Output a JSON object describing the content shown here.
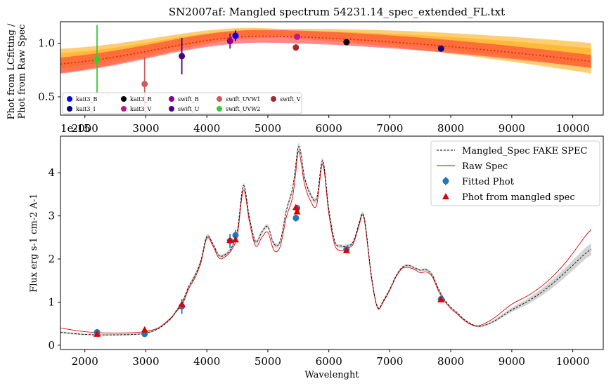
{
  "chart_data": [
    {
      "type": "scatter",
      "title": "SN2007af: Mangled spectrum 54231.14_spec_extended_FL.txt",
      "ylabel_line1": "Phot from LCfitting /",
      "ylabel_line2": "Phot from Raw Spec",
      "xlabel": "",
      "xlim": [
        1600,
        10500
      ],
      "ylim": [
        0.33,
        1.2
      ],
      "xticks": [
        2000,
        3000,
        4000,
        5000,
        6000,
        7000,
        8000,
        9000,
        10000
      ],
      "yticks": [
        0.5,
        1.0
      ],
      "ytick_labels": [
        "0.5",
        "1.0"
      ],
      "offset_text": "1e-15",
      "grid": false,
      "legend_placement": "lower-left",
      "series": [
        {
          "name": "kait3_B",
          "color": "#0000ff",
          "x": [
            4470
          ],
          "y": [
            1.07
          ],
          "err": [
            0.05
          ]
        },
        {
          "name": "kait3_I",
          "color": "#00008b",
          "x": [
            7840
          ],
          "y": [
            0.95
          ],
          "err": [
            0.02
          ]
        },
        {
          "name": "kait3_R",
          "color": "#000000",
          "x": [
            6290
          ],
          "y": [
            1.01
          ],
          "err": [
            0.02
          ]
        },
        {
          "name": "kait3_V",
          "color": "#c71585",
          "x": [
            5480
          ],
          "y": [
            1.06
          ],
          "err": [
            0.02
          ]
        },
        {
          "name": "swift_B",
          "color": "#8b008b",
          "x": [
            4380
          ],
          "y": [
            1.02
          ],
          "err": [
            0.07
          ]
        },
        {
          "name": "swift_U",
          "color": "#4b0082",
          "x": [
            3590
          ],
          "y": [
            0.88
          ],
          "err": [
            0.17
          ]
        },
        {
          "name": "swift_UVW1",
          "color": "#cd5c5c",
          "x": [
            2980
          ],
          "y": [
            0.62
          ],
          "err": [
            0.25
          ]
        },
        {
          "name": "swift_UVW2",
          "color": "#32cd32",
          "x": [
            2200
          ],
          "y": [
            0.85
          ],
          "err": [
            0.32
          ]
        },
        {
          "name": "swift_V",
          "color": "#a52a2a",
          "x": [
            5460
          ],
          "y": [
            0.96
          ],
          "err": [
            0.03
          ]
        }
      ],
      "curve_color": "#ff6060",
      "band_color": "#ffa500"
    },
    {
      "type": "line",
      "xlabel": "Wavelenght",
      "ylabel": "Flux erg s-1 cm-2 A-1",
      "xlim": [
        1600,
        10500
      ],
      "ylim": [
        -0.1,
        4.85
      ],
      "xticks": [
        2000,
        3000,
        4000,
        5000,
        6000,
        7000,
        8000,
        9000,
        10000
      ],
      "yticks": [
        0,
        1,
        2,
        3,
        4
      ],
      "grid": false,
      "legend_placement": "top-right",
      "legend": [
        {
          "name": "Mangled_Spec FAKE SPEC",
          "kind": "dashed",
          "color": "#000000"
        },
        {
          "name": "Raw Spec",
          "kind": "line",
          "color": "#e00000"
        },
        {
          "name": "Fitted Phot",
          "kind": "errpoint",
          "color": "#1f77b4"
        },
        {
          "name": "Phot from mangled spec",
          "kind": "triangle",
          "color": "#e00000"
        }
      ],
      "mangled_spec": {
        "x": [
          1600,
          1900,
          2200,
          2500,
          2800,
          3000,
          3200,
          3400,
          3500,
          3600,
          3700,
          3800,
          3900,
          4000,
          4100,
          4200,
          4300,
          4400,
          4500,
          4600,
          4700,
          4800,
          4900,
          5000,
          5100,
          5200,
          5300,
          5400,
          5450,
          5500,
          5550,
          5600,
          5700,
          5800,
          5900,
          6000,
          6100,
          6200,
          6300,
          6400,
          6500,
          6550,
          6600,
          6700,
          6800,
          6900,
          7000,
          7100,
          7200,
          7300,
          7400,
          7500,
          7600,
          7700,
          7800,
          7900,
          8000,
          8100,
          8200,
          8300,
          8400,
          8500,
          8700,
          9000,
          9300,
          9600,
          9900,
          10200,
          10300
        ],
        "y": [
          0.3,
          0.26,
          0.24,
          0.24,
          0.25,
          0.28,
          0.38,
          0.6,
          0.8,
          1.0,
          1.35,
          1.6,
          1.95,
          2.52,
          2.35,
          2.08,
          2.1,
          2.25,
          2.65,
          3.7,
          2.95,
          2.4,
          2.62,
          2.75,
          2.35,
          2.4,
          3.1,
          3.6,
          4.1,
          4.6,
          4.4,
          3.9,
          3.5,
          3.4,
          4.28,
          3.15,
          2.4,
          2.3,
          2.3,
          2.4,
          2.85,
          3.05,
          2.8,
          1.6,
          0.88,
          1.05,
          1.3,
          1.6,
          1.8,
          1.85,
          1.8,
          1.74,
          1.75,
          1.62,
          1.3,
          1.05,
          0.88,
          0.76,
          0.62,
          0.52,
          0.45,
          0.44,
          0.55,
          0.82,
          1.05,
          1.35,
          1.72,
          2.12,
          2.22
        ],
        "band": [
          0.02,
          0.02,
          0.02,
          0.02,
          0.02,
          0.02,
          0.02,
          0.03,
          0.04,
          0.05,
          0.05,
          0.05,
          0.05,
          0.05,
          0.04,
          0.04,
          0.04,
          0.05,
          0.05,
          0.06,
          0.05,
          0.05,
          0.05,
          0.05,
          0.05,
          0.05,
          0.06,
          0.06,
          0.07,
          0.08,
          0.08,
          0.07,
          0.06,
          0.06,
          0.07,
          0.06,
          0.04,
          0.04,
          0.04,
          0.04,
          0.05,
          0.05,
          0.05,
          0.03,
          0.02,
          0.02,
          0.03,
          0.03,
          0.03,
          0.03,
          0.03,
          0.03,
          0.03,
          0.03,
          0.03,
          0.03,
          0.02,
          0.02,
          0.02,
          0.02,
          0.02,
          0.02,
          0.03,
          0.05,
          0.07,
          0.09,
          0.11,
          0.13,
          0.14
        ]
      },
      "raw_spec": {
        "x": [
          1600,
          1900,
          2200,
          2500,
          2800,
          3000,
          3200,
          3400,
          3500,
          3600,
          3700,
          3800,
          3900,
          4000,
          4100,
          4200,
          4300,
          4400,
          4500,
          4600,
          4700,
          4800,
          4900,
          5000,
          5100,
          5200,
          5300,
          5400,
          5450,
          5500,
          5550,
          5600,
          5700,
          5800,
          5900,
          6000,
          6100,
          6200,
          6300,
          6400,
          6500,
          6550,
          6600,
          6700,
          6800,
          6900,
          7000,
          7100,
          7200,
          7300,
          7400,
          7500,
          7600,
          7700,
          7800,
          7900,
          8000,
          8100,
          8200,
          8300,
          8400,
          8500,
          8700,
          9000,
          9300,
          9600,
          9900,
          10200,
          10300
        ],
        "y": [
          0.4,
          0.33,
          0.29,
          0.28,
          0.29,
          0.32,
          0.4,
          0.62,
          0.78,
          0.95,
          1.3,
          1.55,
          1.9,
          2.48,
          2.3,
          2.02,
          2.05,
          2.2,
          2.55,
          3.6,
          2.85,
          2.3,
          2.5,
          2.62,
          2.2,
          2.28,
          2.95,
          3.4,
          3.9,
          4.5,
          4.2,
          3.75,
          3.35,
          3.25,
          4.2,
          3.05,
          2.32,
          2.2,
          2.25,
          2.35,
          2.8,
          3.02,
          2.75,
          1.55,
          0.86,
          1.02,
          1.28,
          1.58,
          1.78,
          1.8,
          1.76,
          1.68,
          1.7,
          1.58,
          1.25,
          1.02,
          0.85,
          0.73,
          0.6,
          0.5,
          0.45,
          0.47,
          0.62,
          0.95,
          1.18,
          1.5,
          1.95,
          2.52,
          2.68
        ]
      },
      "fitted_phot": {
        "x": [
          2200,
          2980,
          3590,
          4380,
          4470,
          5460,
          5480,
          6290,
          7840
        ],
        "y": [
          0.3,
          0.26,
          0.9,
          2.42,
          2.55,
          2.95,
          3.18,
          2.22,
          1.07
        ],
        "err": [
          0.06,
          0.05,
          0.17,
          0.16,
          0.12,
          0.08,
          0.06,
          0.04,
          0.04
        ]
      },
      "phot_mangled": {
        "x": [
          2200,
          2980,
          3590,
          4380,
          4470,
          5460,
          5480,
          6290,
          7840
        ],
        "y": [
          0.26,
          0.36,
          0.95,
          2.44,
          2.45,
          3.2,
          3.1,
          2.2,
          1.06
        ]
      }
    }
  ]
}
